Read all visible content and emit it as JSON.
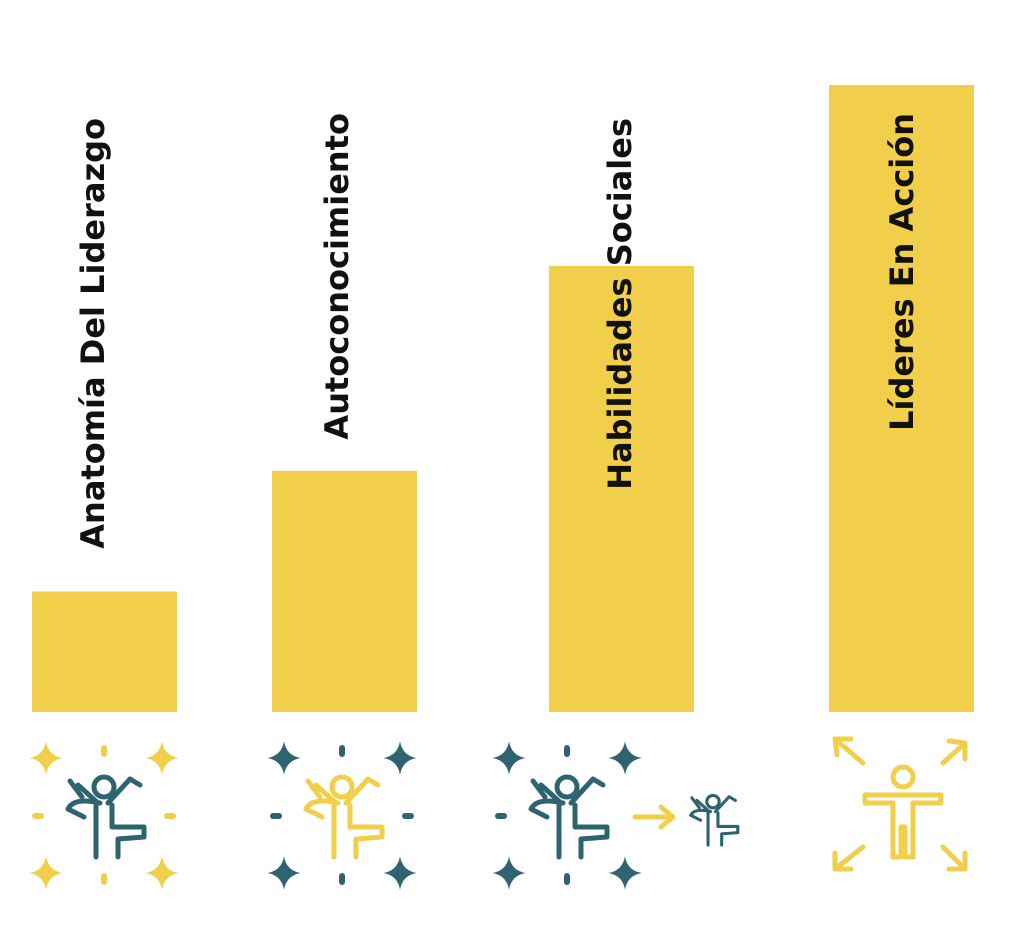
{
  "chart_data": {
    "type": "bar",
    "categories": [
      "Anatomía Del Liderazgo",
      "Autoconocimiento",
      "Habilidades Sociales",
      "Líderes En Acción"
    ],
    "values": [
      1,
      2,
      3.7,
      5.2
    ],
    "ylim": [
      0,
      5.2
    ],
    "grid": false,
    "legend": "none",
    "icons": [
      "jumping-figure-with-sparkles-icon",
      "jumping-figure-with-sparkles-icon",
      "figure-with-sparkles-arrow-to-small-figure-icon",
      "figure-with-outward-arrows-icon"
    ]
  },
  "colors": {
    "bar": "#F2CF4A",
    "teal": "#2E6470",
    "yellow": "#F2CF4A",
    "text": "#111111"
  }
}
